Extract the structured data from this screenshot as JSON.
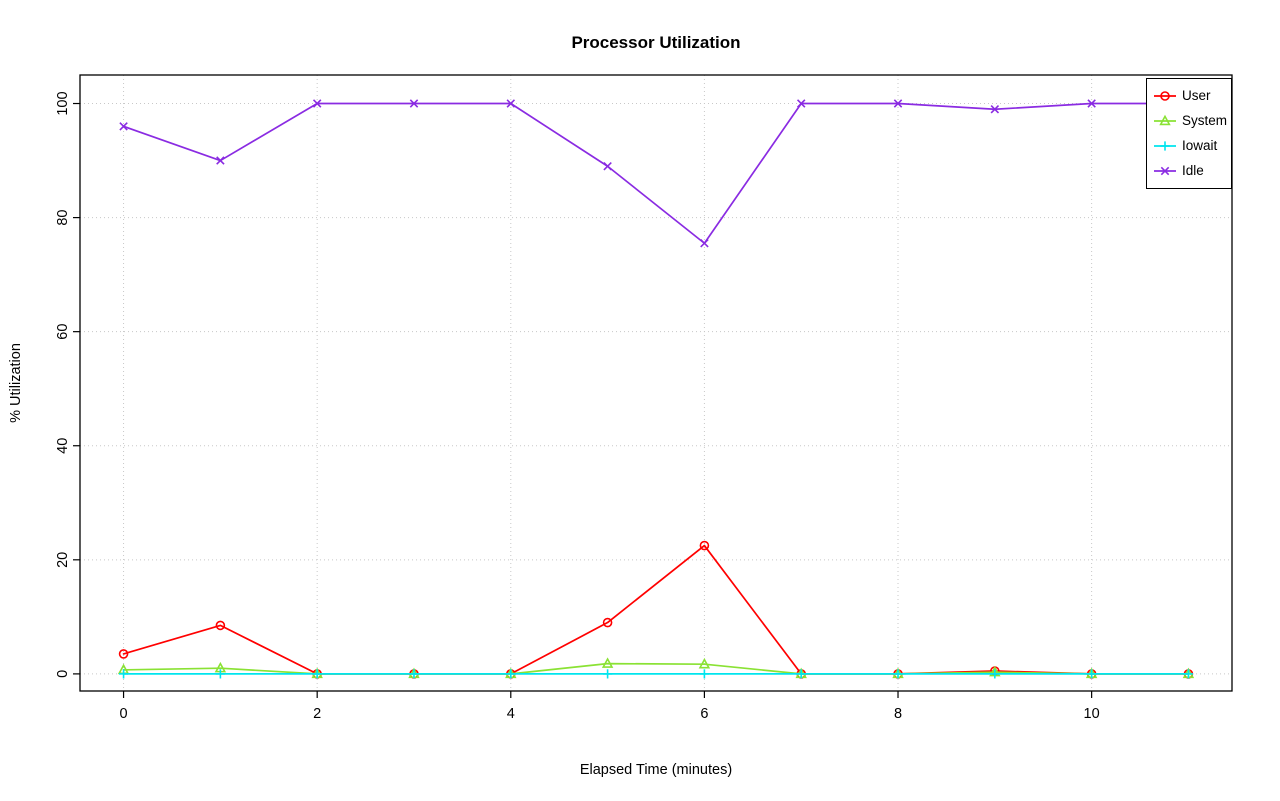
{
  "chart_data": {
    "type": "line",
    "title": "Processor Utilization",
    "xlabel": "Elapsed Time (minutes)",
    "ylabel": "% Utilization",
    "x": [
      0,
      1,
      2,
      3,
      4,
      5,
      6,
      7,
      8,
      9,
      10,
      11
    ],
    "xlim": [
      0,
      11
    ],
    "ylim": [
      0,
      100
    ],
    "x_ticks": [
      0,
      2,
      4,
      6,
      8,
      10
    ],
    "y_ticks": [
      0,
      20,
      40,
      60,
      80,
      100
    ],
    "grid": true,
    "grid_style": "dotted",
    "grid_color": "#c8c8c8",
    "axis_color": "#000000",
    "background": "#ffffff",
    "legend_position": "top-right",
    "series": [
      {
        "name": "User",
        "color": "#ff0000",
        "marker": "circle",
        "values": [
          3.5,
          8.5,
          0,
          0,
          0,
          9,
          22.5,
          0,
          0,
          0.5,
          0,
          0
        ]
      },
      {
        "name": "System",
        "color": "#8ae234",
        "marker": "triangle",
        "values": [
          0.7,
          1,
          0,
          0,
          0,
          1.8,
          1.7,
          0,
          0,
          0.3,
          0,
          0
        ]
      },
      {
        "name": "Iowait",
        "color": "#00e5ee",
        "marker": "plus",
        "values": [
          0,
          0,
          0,
          0,
          0,
          0,
          0,
          0,
          0,
          0,
          0,
          0
        ]
      },
      {
        "name": "Idle",
        "color": "#8a2be2",
        "marker": "x",
        "values": [
          96,
          90,
          100,
          100,
          100,
          89,
          75.5,
          100,
          100,
          99,
          100,
          100
        ]
      }
    ]
  }
}
